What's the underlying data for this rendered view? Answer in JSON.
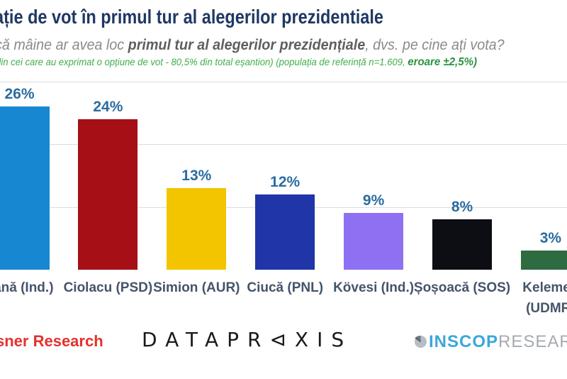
{
  "header": {
    "title": "ație de vot în primul tur al alegerilor prezidentiale",
    "question": {
      "prefix": "că mâine ar avea loc ",
      "bold": "primul tur al alegerilor prezidențiale",
      "suffix": ", dvs. pe cine ați vota?"
    },
    "note": {
      "main": "din cei care au exprimat o opțiune de vot  - 80,5% din total eșantion) (populația de referință n=1.609, ",
      "emphasis": "eroare ±2,5%)"
    }
  },
  "chart_data": {
    "type": "bar",
    "title": "ație de vot în primul tur al alegerilor prezidentiale",
    "categories": [
      "oană (Ind.)",
      "Ciolacu (PSD)",
      "Simion (AUR)",
      "Ciucă (PNL)",
      "Kövesi (Ind.)",
      "Șoșoacă (SOS)",
      "Kelemen (UDMR)"
    ],
    "values": [
      26,
      24,
      13,
      12,
      9,
      8,
      3
    ],
    "value_labels": [
      "26%",
      "24%",
      "13%",
      "12%",
      "9%",
      "8%",
      "3%"
    ],
    "bar_colors": [
      "#1787D1",
      "#A50F15",
      "#F2C500",
      "#1F35A8",
      "#8E70F2",
      "#0D0D14",
      "#2E6B40"
    ],
    "ylim": [
      0,
      30
    ],
    "gridline_values": [
      10,
      20,
      30
    ],
    "grid": true,
    "legend": false,
    "xlabel": "",
    "ylabel": ""
  },
  "footer": {
    "left_logo_text": "sner Research",
    "center_logo_text": "DATAPR⊲XIS",
    "right_logo_primary": "INSCOP",
    "right_logo_secondary": "RESEARCH"
  },
  "colors": {
    "title": "#1F3864",
    "value_label": "#2A6CA0",
    "category_label": "#44546A",
    "note_green": "#3FAE49",
    "note_green_dark": "#2A9440",
    "left_logo_red": "#E6312E",
    "inscop_blue": "#3AA7DC",
    "inscop_gray": "#A6ABB0",
    "gridline": "#DCDCDC"
  }
}
